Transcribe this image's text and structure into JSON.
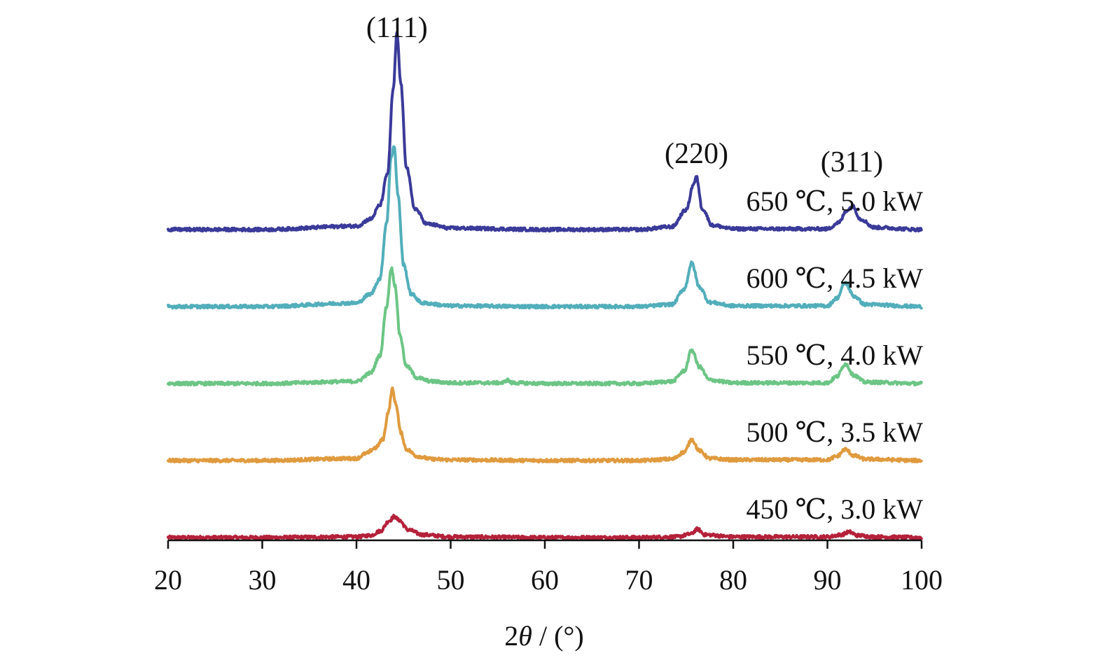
{
  "chart_data": {
    "type": "line",
    "xlabel_prefix": "2",
    "xlabel_symbol": "θ",
    "xlabel_suffix": " / (°)",
    "ylabel": "",
    "xlim": [
      20,
      100
    ],
    "x_ticks": [
      20,
      30,
      40,
      50,
      60,
      70,
      80,
      90,
      100
    ],
    "x_tick_labels": [
      "20",
      "30",
      "40",
      "50",
      "60",
      "70",
      "80",
      "90",
      "100"
    ],
    "y_ticks_shown": false,
    "grid": false,
    "peak_annotations": [
      {
        "label": "(111)",
        "x": 44.3
      },
      {
        "label": "(220)",
        "x": 76.1
      },
      {
        "label": "(311)",
        "x": 92.6
      }
    ],
    "series": [
      {
        "name": "450 ℃, 3.0 kW",
        "color": "#b5213a",
        "offset": 0,
        "x": [
          20,
          30,
          40,
          41.5,
          42.5,
          43.5,
          44.0,
          44.5,
          45.5,
          47,
          50,
          60,
          70,
          74,
          75.5,
          76.2,
          77,
          80,
          90,
          91.5,
          92.3,
          93.2,
          95,
          100
        ],
        "y": [
          0,
          0,
          1,
          3,
          9,
          24,
          30,
          25,
          11,
          4,
          1,
          0,
          0,
          1,
          5,
          12,
          4,
          1,
          1,
          4,
          8,
          3,
          1,
          0
        ]
      },
      {
        "name": "500 ℃, 3.5 kW",
        "color": "#e09a3e",
        "offset": 110,
        "x": [
          20,
          30,
          40,
          41.0,
          42.0,
          42.8,
          43.4,
          43.8,
          44.2,
          44.7,
          45.3,
          46.5,
          48,
          50,
          60,
          70,
          73.5,
          74.8,
          75.6,
          76.4,
          77.5,
          80,
          90,
          91.0,
          91.9,
          92.8,
          94,
          100
        ],
        "y": [
          0,
          0,
          3,
          10,
          18,
          30,
          70,
          102,
          80,
          40,
          16,
          6,
          2,
          1,
          0,
          0,
          2,
          12,
          30,
          14,
          3,
          1,
          1,
          6,
          16,
          7,
          2,
          0
        ]
      },
      {
        "name": "550 ℃, 4.0 kW",
        "color": "#6cc585",
        "offset": 220,
        "x": [
          20,
          30,
          40,
          41.5,
          42.5,
          43.2,
          43.7,
          44.1,
          44.6,
          45.3,
          46.5,
          48,
          50,
          55.5,
          56,
          56.5,
          60,
          70,
          73.5,
          74.8,
          75.6,
          76.4,
          77.5,
          80,
          90,
          91.0,
          91.9,
          92.8,
          94,
          100
        ],
        "y": [
          0,
          0,
          3,
          15,
          40,
          110,
          165,
          140,
          70,
          25,
          8,
          3,
          1,
          1,
          5,
          1,
          0,
          0,
          3,
          18,
          48,
          24,
          5,
          1,
          1,
          10,
          28,
          12,
          2,
          0
        ]
      },
      {
        "name": "600 ℃, 4.5 kW",
        "color": "#52aeba",
        "offset": 330,
        "x": [
          20,
          30,
          40,
          41.5,
          42.5,
          43.2,
          43.7,
          44.0,
          44.4,
          45.0,
          45.8,
          47,
          50,
          60,
          70,
          73.5,
          74.8,
          75.6,
          76.4,
          77.5,
          80,
          90,
          91.0,
          91.9,
          92.8,
          94,
          100
        ],
        "y": [
          0,
          0,
          5,
          18,
          40,
          120,
          215,
          230,
          160,
          60,
          18,
          5,
          1,
          0,
          0,
          3,
          25,
          62,
          28,
          6,
          1,
          1,
          12,
          34,
          15,
          3,
          0
        ]
      },
      {
        "name": "650 ℃, 5.0 kW",
        "color": "#3a3a9a",
        "offset": 440,
        "x": [
          20,
          30,
          40,
          41.5,
          42.5,
          43.3,
          43.9,
          44.3,
          44.7,
          45.3,
          46.2,
          47.5,
          50,
          60,
          70,
          73.5,
          75.0,
          75.8,
          76.1,
          76.7,
          77.8,
          80,
          90,
          91.2,
          92.1,
          92.7,
          93.5,
          95,
          100
        ],
        "y": [
          0,
          0,
          5,
          15,
          35,
          80,
          200,
          280,
          210,
          90,
          30,
          8,
          2,
          0,
          0,
          4,
          28,
          65,
          75,
          30,
          6,
          1,
          1,
          10,
          28,
          33,
          15,
          3,
          0
        ]
      }
    ]
  }
}
